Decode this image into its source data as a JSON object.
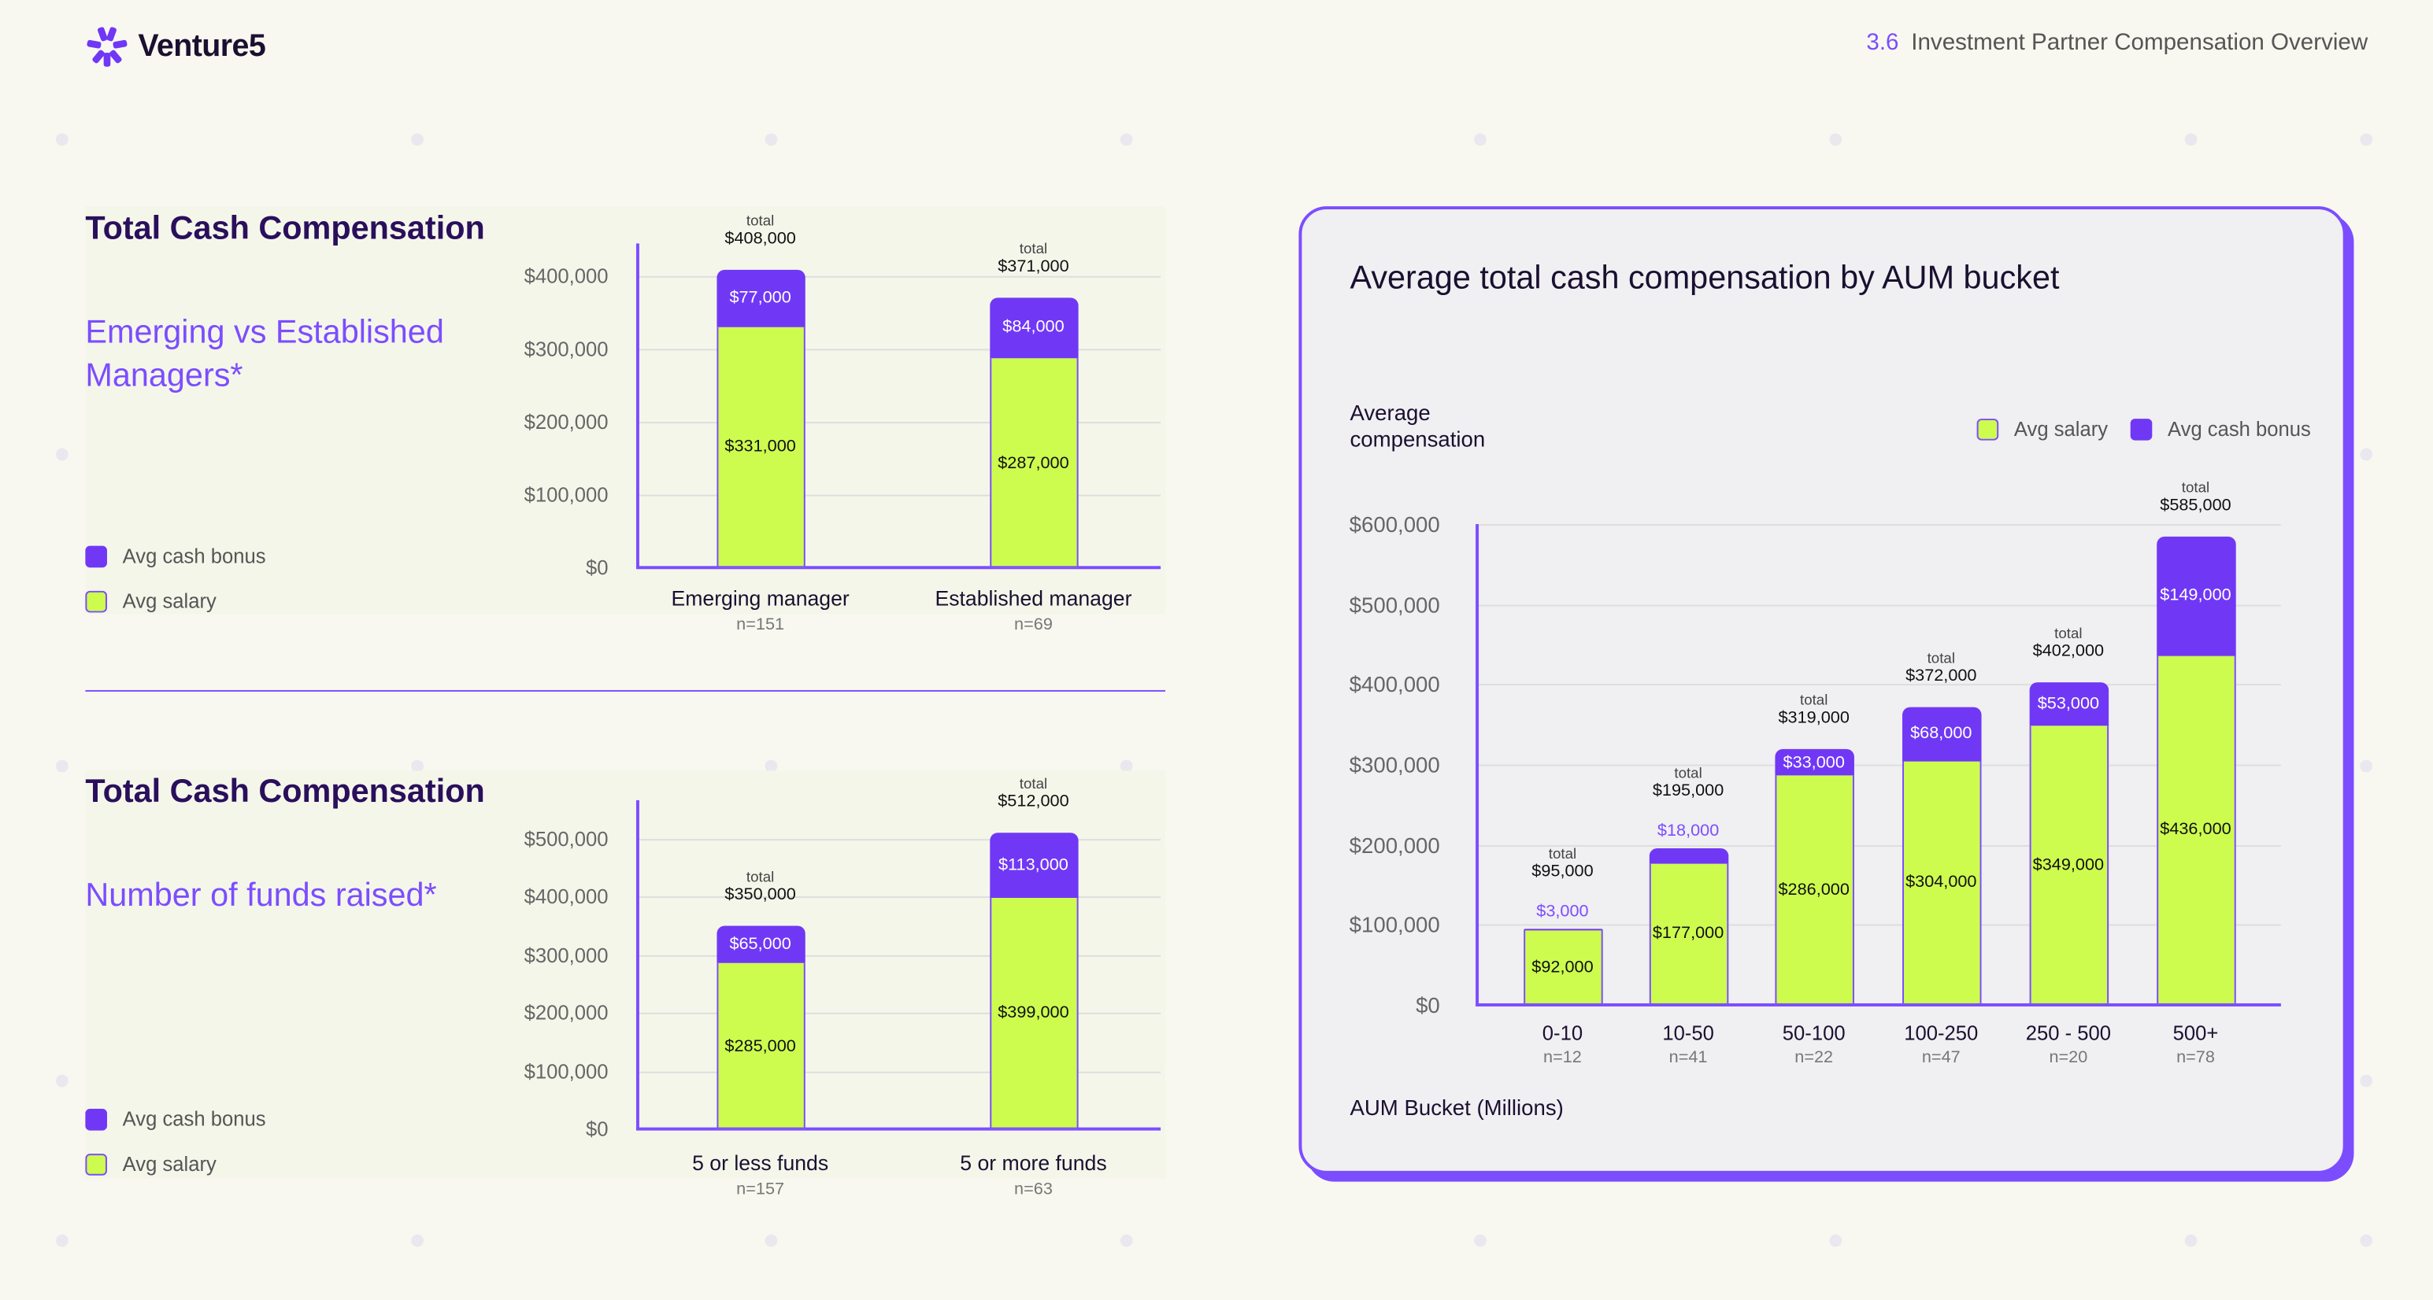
{
  "header": {
    "brand": "Venture5",
    "section_number": "3.6",
    "section_title": "Investment Partner Compensation Overview"
  },
  "colors": {
    "salary": "#cdfc4f",
    "bonus": "#7038f5",
    "accent": "#7c4dff",
    "title": "#2a0f5c"
  },
  "legend": {
    "bonus": "Avg cash bonus",
    "salary": "Avg salary"
  },
  "chart_data": [
    {
      "type": "bar",
      "stacked": true,
      "title": "Total Cash Compensation",
      "subtitle": "Emerging vs Established Managers*",
      "categories": [
        "Emerging manager",
        "Established manager"
      ],
      "n": [
        "n=151",
        "n=69"
      ],
      "series": [
        {
          "name": "Avg salary",
          "values": [
            331000,
            287000
          ]
        },
        {
          "name": "Avg cash bonus",
          "values": [
            77000,
            84000
          ]
        }
      ],
      "totals": [
        408000,
        371000
      ],
      "total_label": "total",
      "yticks": [
        0,
        100000,
        200000,
        300000,
        400000
      ],
      "ylim": [
        0,
        445000
      ],
      "grid": true,
      "legend_position": "bottom-left"
    },
    {
      "type": "bar",
      "stacked": true,
      "title": "Total Cash Compensation",
      "subtitle": "Number of funds raised*",
      "categories": [
        "5 or less funds",
        "5 or more funds"
      ],
      "n": [
        "n=157",
        "n=63"
      ],
      "series": [
        {
          "name": "Avg salary",
          "values": [
            285000,
            399000
          ]
        },
        {
          "name": "Avg cash bonus",
          "values": [
            65000,
            113000
          ]
        }
      ],
      "totals": [
        350000,
        512000
      ],
      "total_label": "total",
      "yticks": [
        0,
        100000,
        200000,
        300000,
        400000,
        500000
      ],
      "ylim": [
        0,
        567000
      ],
      "grid": true,
      "legend_position": "bottom-left"
    },
    {
      "type": "bar",
      "stacked": true,
      "title": "Average total cash compensation by AUM bucket",
      "ylabel": "Average compensation",
      "xlabel": "AUM Bucket (Millions)",
      "categories": [
        "0-10",
        "10-50",
        "50-100",
        "100-250",
        "250 - 500",
        "500+"
      ],
      "n": [
        "n=12",
        "n=41",
        "n=22",
        "n=47",
        "n=20",
        "n=78"
      ],
      "series": [
        {
          "name": "Avg salary",
          "values": [
            92000,
            177000,
            286000,
            304000,
            349000,
            436000
          ]
        },
        {
          "name": "Avg cash bonus",
          "values": [
            3000,
            18000,
            33000,
            68000,
            53000,
            149000
          ]
        }
      ],
      "totals": [
        95000,
        195000,
        319000,
        372000,
        402000,
        585000
      ],
      "total_label": "total",
      "yticks": [
        0,
        100000,
        200000,
        300000,
        400000,
        500000,
        600000
      ],
      "ylim": [
        0,
        600000
      ],
      "grid": true,
      "legend_position": "top-right"
    }
  ]
}
